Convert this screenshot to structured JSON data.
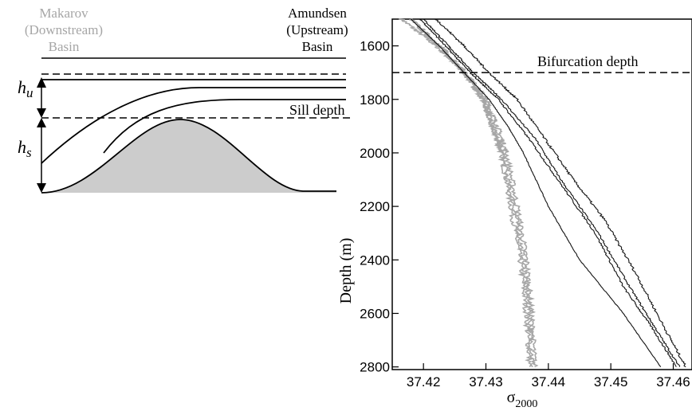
{
  "schematic": {
    "downstream_label": [
      "Makarov",
      "(Downstream)",
      "Basin"
    ],
    "upstream_label": [
      "Amundsen",
      "(Upstream)",
      "Basin"
    ],
    "hu_symbol": "h",
    "hu_sub": "u",
    "hs_symbol": "h",
    "hs_sub": "s",
    "sill_label": "Sill depth",
    "downstream_color": "#a6a6a6",
    "sill_fill": "#cccccc"
  },
  "chart_data": {
    "type": "line",
    "xlabel_symbol": "σ",
    "xlabel_sub": "2000",
    "ylabel": "Depth (m)",
    "xlim": [
      37.415,
      37.463
    ],
    "ylim": [
      2810,
      1500
    ],
    "xticks": [
      37.42,
      37.43,
      37.44,
      37.45,
      37.46
    ],
    "yticks": [
      1600,
      1800,
      2000,
      2200,
      2400,
      2600,
      2800
    ],
    "bifurcation_depth": 1700,
    "bifurcation_label": "Bifurcation depth",
    "series": [
      {
        "color": "#a6a6a6",
        "noise": 0.0009,
        "points": [
          [
            37.4165,
            1500
          ],
          [
            37.422,
            1600
          ],
          [
            37.4265,
            1700
          ],
          [
            37.4295,
            1800
          ],
          [
            37.431,
            1900
          ],
          [
            37.4325,
            2000
          ],
          [
            37.434,
            2200
          ],
          [
            37.4355,
            2400
          ],
          [
            37.4365,
            2600
          ],
          [
            37.437,
            2800
          ]
        ]
      },
      {
        "color": "#a6a6a6",
        "noise": 0.0009,
        "points": [
          [
            37.418,
            1500
          ],
          [
            37.4225,
            1600
          ],
          [
            37.4265,
            1700
          ],
          [
            37.4295,
            1800
          ],
          [
            37.431,
            1900
          ],
          [
            37.4325,
            2000
          ],
          [
            37.4345,
            2200
          ],
          [
            37.436,
            2400
          ],
          [
            37.437,
            2600
          ],
          [
            37.4375,
            2800
          ]
        ]
      },
      {
        "color": "#a6a6a6",
        "noise": 0.0009,
        "points": [
          [
            37.419,
            1530
          ],
          [
            37.4235,
            1620
          ],
          [
            37.4275,
            1720
          ],
          [
            37.43,
            1800
          ],
          [
            37.4318,
            1900
          ],
          [
            37.4333,
            2000
          ],
          [
            37.435,
            2200
          ],
          [
            37.4365,
            2400
          ],
          [
            37.4373,
            2600
          ],
          [
            37.4378,
            2800
          ]
        ]
      },
      {
        "color": "#111111",
        "noise": 0.0001,
        "points": [
          [
            37.418,
            1500
          ],
          [
            37.4225,
            1600
          ],
          [
            37.4265,
            1700
          ],
          [
            37.4305,
            1800
          ],
          [
            37.4335,
            1900
          ],
          [
            37.436,
            2000
          ],
          [
            37.44,
            2200
          ],
          [
            37.445,
            2400
          ],
          [
            37.452,
            2600
          ],
          [
            37.458,
            2800
          ]
        ]
      },
      {
        "color": "#111111",
        "noise": 0.0003,
        "points": [
          [
            37.42,
            1500
          ],
          [
            37.424,
            1600
          ],
          [
            37.428,
            1700
          ],
          [
            37.4325,
            1800
          ],
          [
            37.438,
            1950
          ],
          [
            37.442,
            2100
          ],
          [
            37.448,
            2300
          ],
          [
            37.453,
            2500
          ],
          [
            37.457,
            2650
          ],
          [
            37.461,
            2800
          ]
        ]
      },
      {
        "color": "#111111",
        "noise": 0.0003,
        "points": [
          [
            37.4195,
            1500
          ],
          [
            37.4235,
            1600
          ],
          [
            37.4275,
            1700
          ],
          [
            37.432,
            1800
          ],
          [
            37.437,
            1950
          ],
          [
            37.4415,
            2100
          ],
          [
            37.4475,
            2300
          ],
          [
            37.452,
            2500
          ],
          [
            37.4565,
            2650
          ],
          [
            37.4605,
            2800
          ]
        ]
      },
      {
        "color": "#111111",
        "noise": 0.0004,
        "points": [
          [
            37.422,
            1500
          ],
          [
            37.4265,
            1600
          ],
          [
            37.4305,
            1700
          ],
          [
            37.435,
            1800
          ],
          [
            37.4395,
            1950
          ],
          [
            37.444,
            2100
          ],
          [
            37.449,
            2250
          ],
          [
            37.454,
            2450
          ],
          [
            37.4585,
            2650
          ],
          [
            37.462,
            2800
          ]
        ]
      }
    ]
  }
}
